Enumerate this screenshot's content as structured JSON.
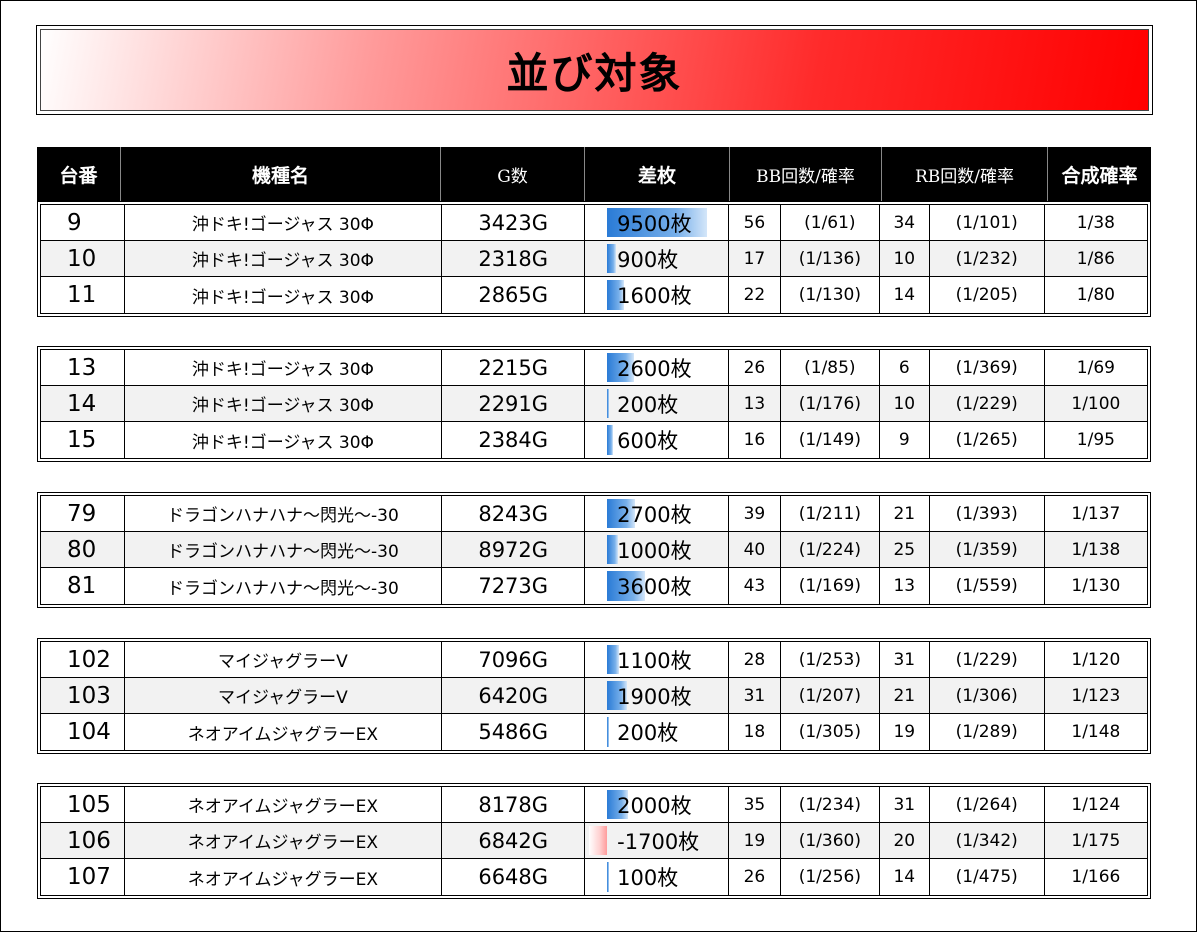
{
  "title": "並び対象",
  "headers": [
    "台番",
    "機種名",
    "G数",
    "差枚",
    "BB回数/確率",
    "RB回数/確率",
    "合成確率"
  ],
  "groups": [
    [
      {
        "no": "9",
        "name": "沖ドキ!ゴージャス 30Φ",
        "g": "3423G",
        "diff": "9500枚",
        "diff_value": 9500,
        "bb": "56",
        "bbp": "(1/61)",
        "rb": "34",
        "rbp": "(1/101)",
        "comb": "1/38"
      },
      {
        "no": "10",
        "name": "沖ドキ!ゴージャス 30Φ",
        "g": "2318G",
        "diff": "900枚",
        "diff_value": 900,
        "bb": "17",
        "bbp": "(1/136)",
        "rb": "10",
        "rbp": "(1/232)",
        "comb": "1/86"
      },
      {
        "no": "11",
        "name": "沖ドキ!ゴージャス 30Φ",
        "g": "2865G",
        "diff": "1600枚",
        "diff_value": 1600,
        "bb": "22",
        "bbp": "(1/130)",
        "rb": "14",
        "rbp": "(1/205)",
        "comb": "1/80"
      }
    ],
    [
      {
        "no": "13",
        "name": "沖ドキ!ゴージャス 30Φ",
        "g": "2215G",
        "diff": "2600枚",
        "diff_value": 2600,
        "bb": "26",
        "bbp": "(1/85)",
        "rb": "6",
        "rbp": "(1/369)",
        "comb": "1/69"
      },
      {
        "no": "14",
        "name": "沖ドキ!ゴージャス 30Φ",
        "g": "2291G",
        "diff": "200枚",
        "diff_value": 200,
        "bb": "13",
        "bbp": "(1/176)",
        "rb": "10",
        "rbp": "(1/229)",
        "comb": "1/100"
      },
      {
        "no": "15",
        "name": "沖ドキ!ゴージャス 30Φ",
        "g": "2384G",
        "diff": "600枚",
        "diff_value": 600,
        "bb": "16",
        "bbp": "(1/149)",
        "rb": "9",
        "rbp": "(1/265)",
        "comb": "1/95"
      }
    ],
    [
      {
        "no": "79",
        "name": "ドラゴンハナハナ～閃光～-30",
        "g": "8243G",
        "diff": "2700枚",
        "diff_value": 2700,
        "bb": "39",
        "bbp": "(1/211)",
        "rb": "21",
        "rbp": "(1/393)",
        "comb": "1/137"
      },
      {
        "no": "80",
        "name": "ドラゴンハナハナ～閃光～-30",
        "g": "8972G",
        "diff": "1000枚",
        "diff_value": 1000,
        "bb": "40",
        "bbp": "(1/224)",
        "rb": "25",
        "rbp": "(1/359)",
        "comb": "1/138"
      },
      {
        "no": "81",
        "name": "ドラゴンハナハナ～閃光～-30",
        "g": "7273G",
        "diff": "3600枚",
        "diff_value": 3600,
        "bb": "43",
        "bbp": "(1/169)",
        "rb": "13",
        "rbp": "(1/559)",
        "comb": "1/130"
      }
    ],
    [
      {
        "no": "102",
        "name": "マイジャグラーV",
        "g": "7096G",
        "diff": "1100枚",
        "diff_value": 1100,
        "bb": "28",
        "bbp": "(1/253)",
        "rb": "31",
        "rbp": "(1/229)",
        "comb": "1/120"
      },
      {
        "no": "103",
        "name": "マイジャグラーV",
        "g": "6420G",
        "diff": "1900枚",
        "diff_value": 1900,
        "bb": "31",
        "bbp": "(1/207)",
        "rb": "21",
        "rbp": "(1/306)",
        "comb": "1/123"
      },
      {
        "no": "104",
        "name": "ネオアイムジャグラーEX",
        "g": "5486G",
        "diff": "200枚",
        "diff_value": 200,
        "bb": "18",
        "bbp": "(1/305)",
        "rb": "19",
        "rbp": "(1/289)",
        "comb": "1/148"
      }
    ],
    [
      {
        "no": "105",
        "name": "ネオアイムジャグラーEX",
        "g": "8178G",
        "diff": "2000枚",
        "diff_value": 2000,
        "bb": "35",
        "bbp": "(1/234)",
        "rb": "31",
        "rbp": "(1/264)",
        "comb": "1/124"
      },
      {
        "no": "106",
        "name": "ネオアイムジャグラーEX",
        "g": "6842G",
        "diff": "-1700枚",
        "diff_value": -1700,
        "bb": "19",
        "bbp": "(1/360)",
        "rb": "20",
        "rbp": "(1/342)",
        "comb": "1/175"
      },
      {
        "no": "107",
        "name": "ネオアイムジャグラーEX",
        "g": "6648G",
        "diff": "100枚",
        "diff_value": 100,
        "bb": "26",
        "bbp": "(1/256)",
        "rb": "14",
        "rbp": "(1/475)",
        "comb": "1/166"
      }
    ]
  ]
}
